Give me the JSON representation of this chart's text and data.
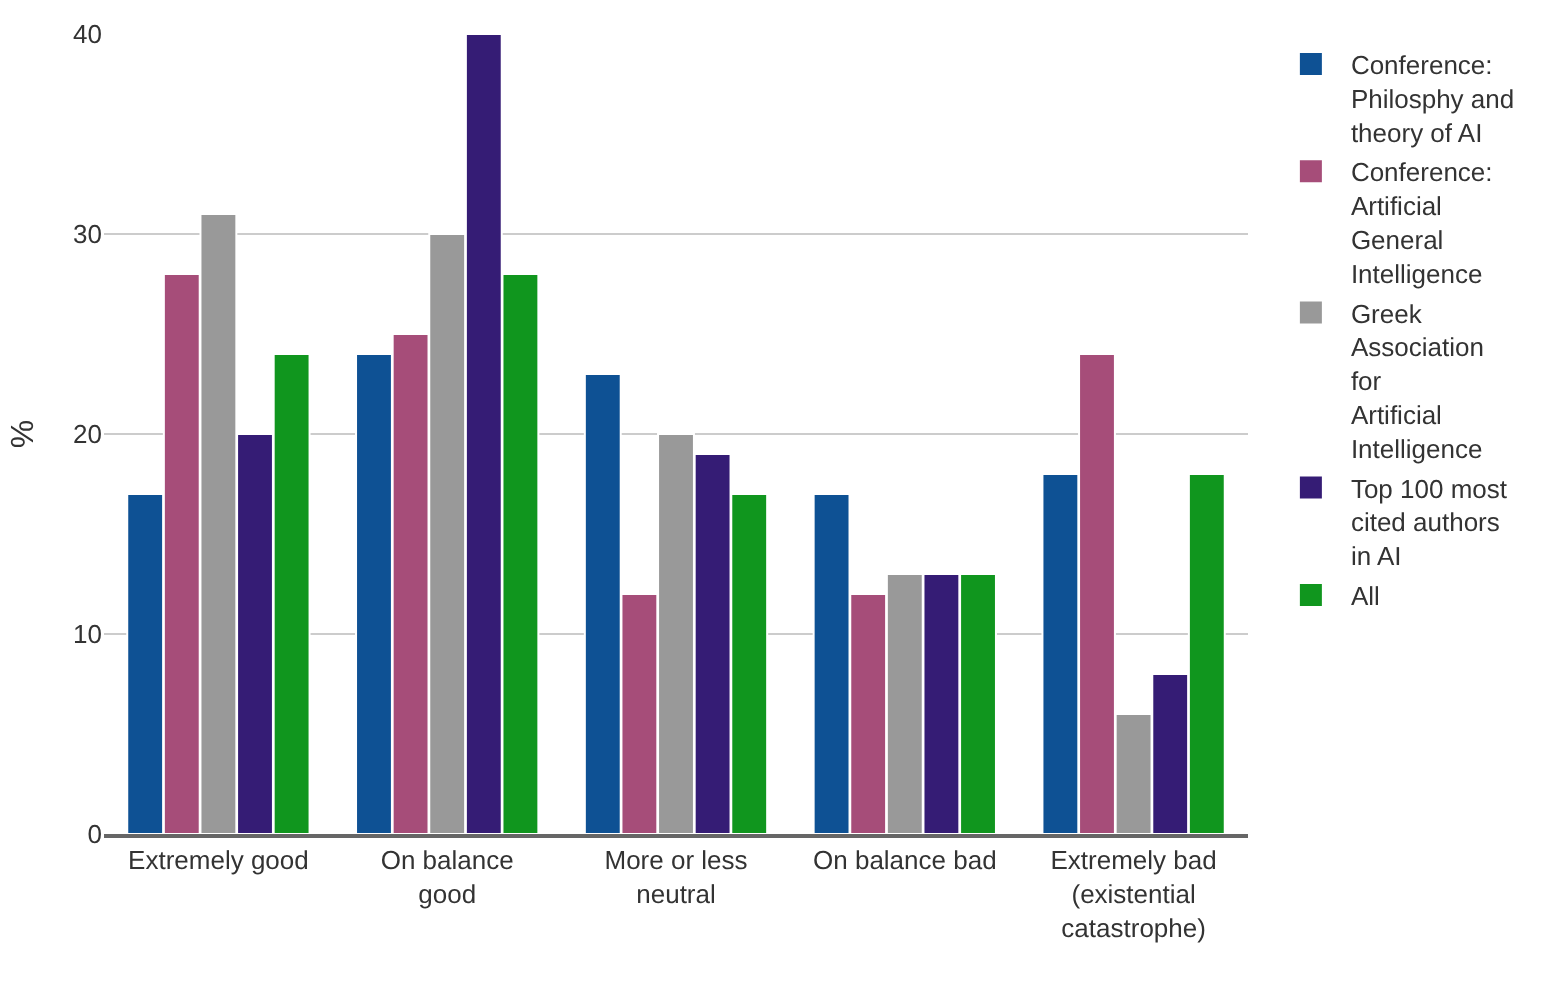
{
  "chart_data": {
    "type": "bar",
    "ylabel": "%",
    "categories": [
      "Extremely good",
      "On balance good",
      "More or less neutral",
      "On balance bad",
      "Extremely bad (existential catastrophe)"
    ],
    "series": [
      {
        "name": "Conference: Philosphy and theory of AI",
        "color": "#0e5194",
        "values": [
          17,
          24,
          23,
          17,
          18
        ]
      },
      {
        "name": "Conference: Artificial General Intelligence",
        "color": "#a64d79",
        "values": [
          28,
          25,
          12,
          12,
          24
        ]
      },
      {
        "name": "Greek Association for Artificial Intelligence",
        "color": "#999999",
        "values": [
          31,
          30,
          20,
          13,
          6
        ]
      },
      {
        "name": "Top 100 most cited authors in AI",
        "color": "#351c75",
        "values": [
          20,
          40,
          19,
          13,
          8
        ]
      },
      {
        "name": "All",
        "color": "#10961e",
        "values": [
          24,
          28,
          17,
          13,
          18
        ]
      }
    ],
    "ylim": [
      0,
      40
    ],
    "yticks": [
      0,
      10,
      20,
      30,
      40
    ],
    "grid": "y",
    "legend": "top right"
  }
}
